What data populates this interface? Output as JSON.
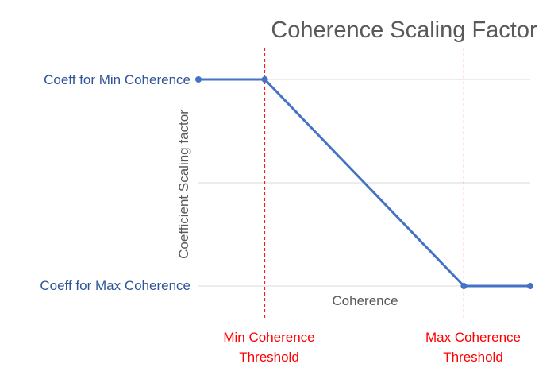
{
  "chart_data": {
    "type": "line",
    "title": "Coherence Scaling Factor",
    "xlabel": "Coherence",
    "ylabel": "Coefficient Scaling factor",
    "y_levels": [
      {
        "label": "Coeff for Min Coherence",
        "value": 1
      },
      {
        "label": "Coeff for Max Coherence",
        "value": 0
      }
    ],
    "gridlines": [
      0,
      0.5,
      1
    ],
    "grid": true,
    "thresholds": [
      {
        "label_line1": "Min Coherence",
        "label_line2": "Threshold",
        "x": 1
      },
      {
        "label_line1": "Max Coherence",
        "label_line2": "Threshold",
        "x": 4
      }
    ],
    "series": [
      {
        "x": [
          0,
          1,
          4,
          5
        ],
        "y": [
          1,
          1,
          0,
          0
        ]
      }
    ],
    "xlim": [
      0,
      5
    ],
    "ylim": [
      0,
      1
    ],
    "colors": {
      "line": "#4472c4",
      "level_text": "#2f5597",
      "threshold": "#ff0000",
      "grid": "#d9d9d9",
      "axis_text": "#595959"
    }
  }
}
